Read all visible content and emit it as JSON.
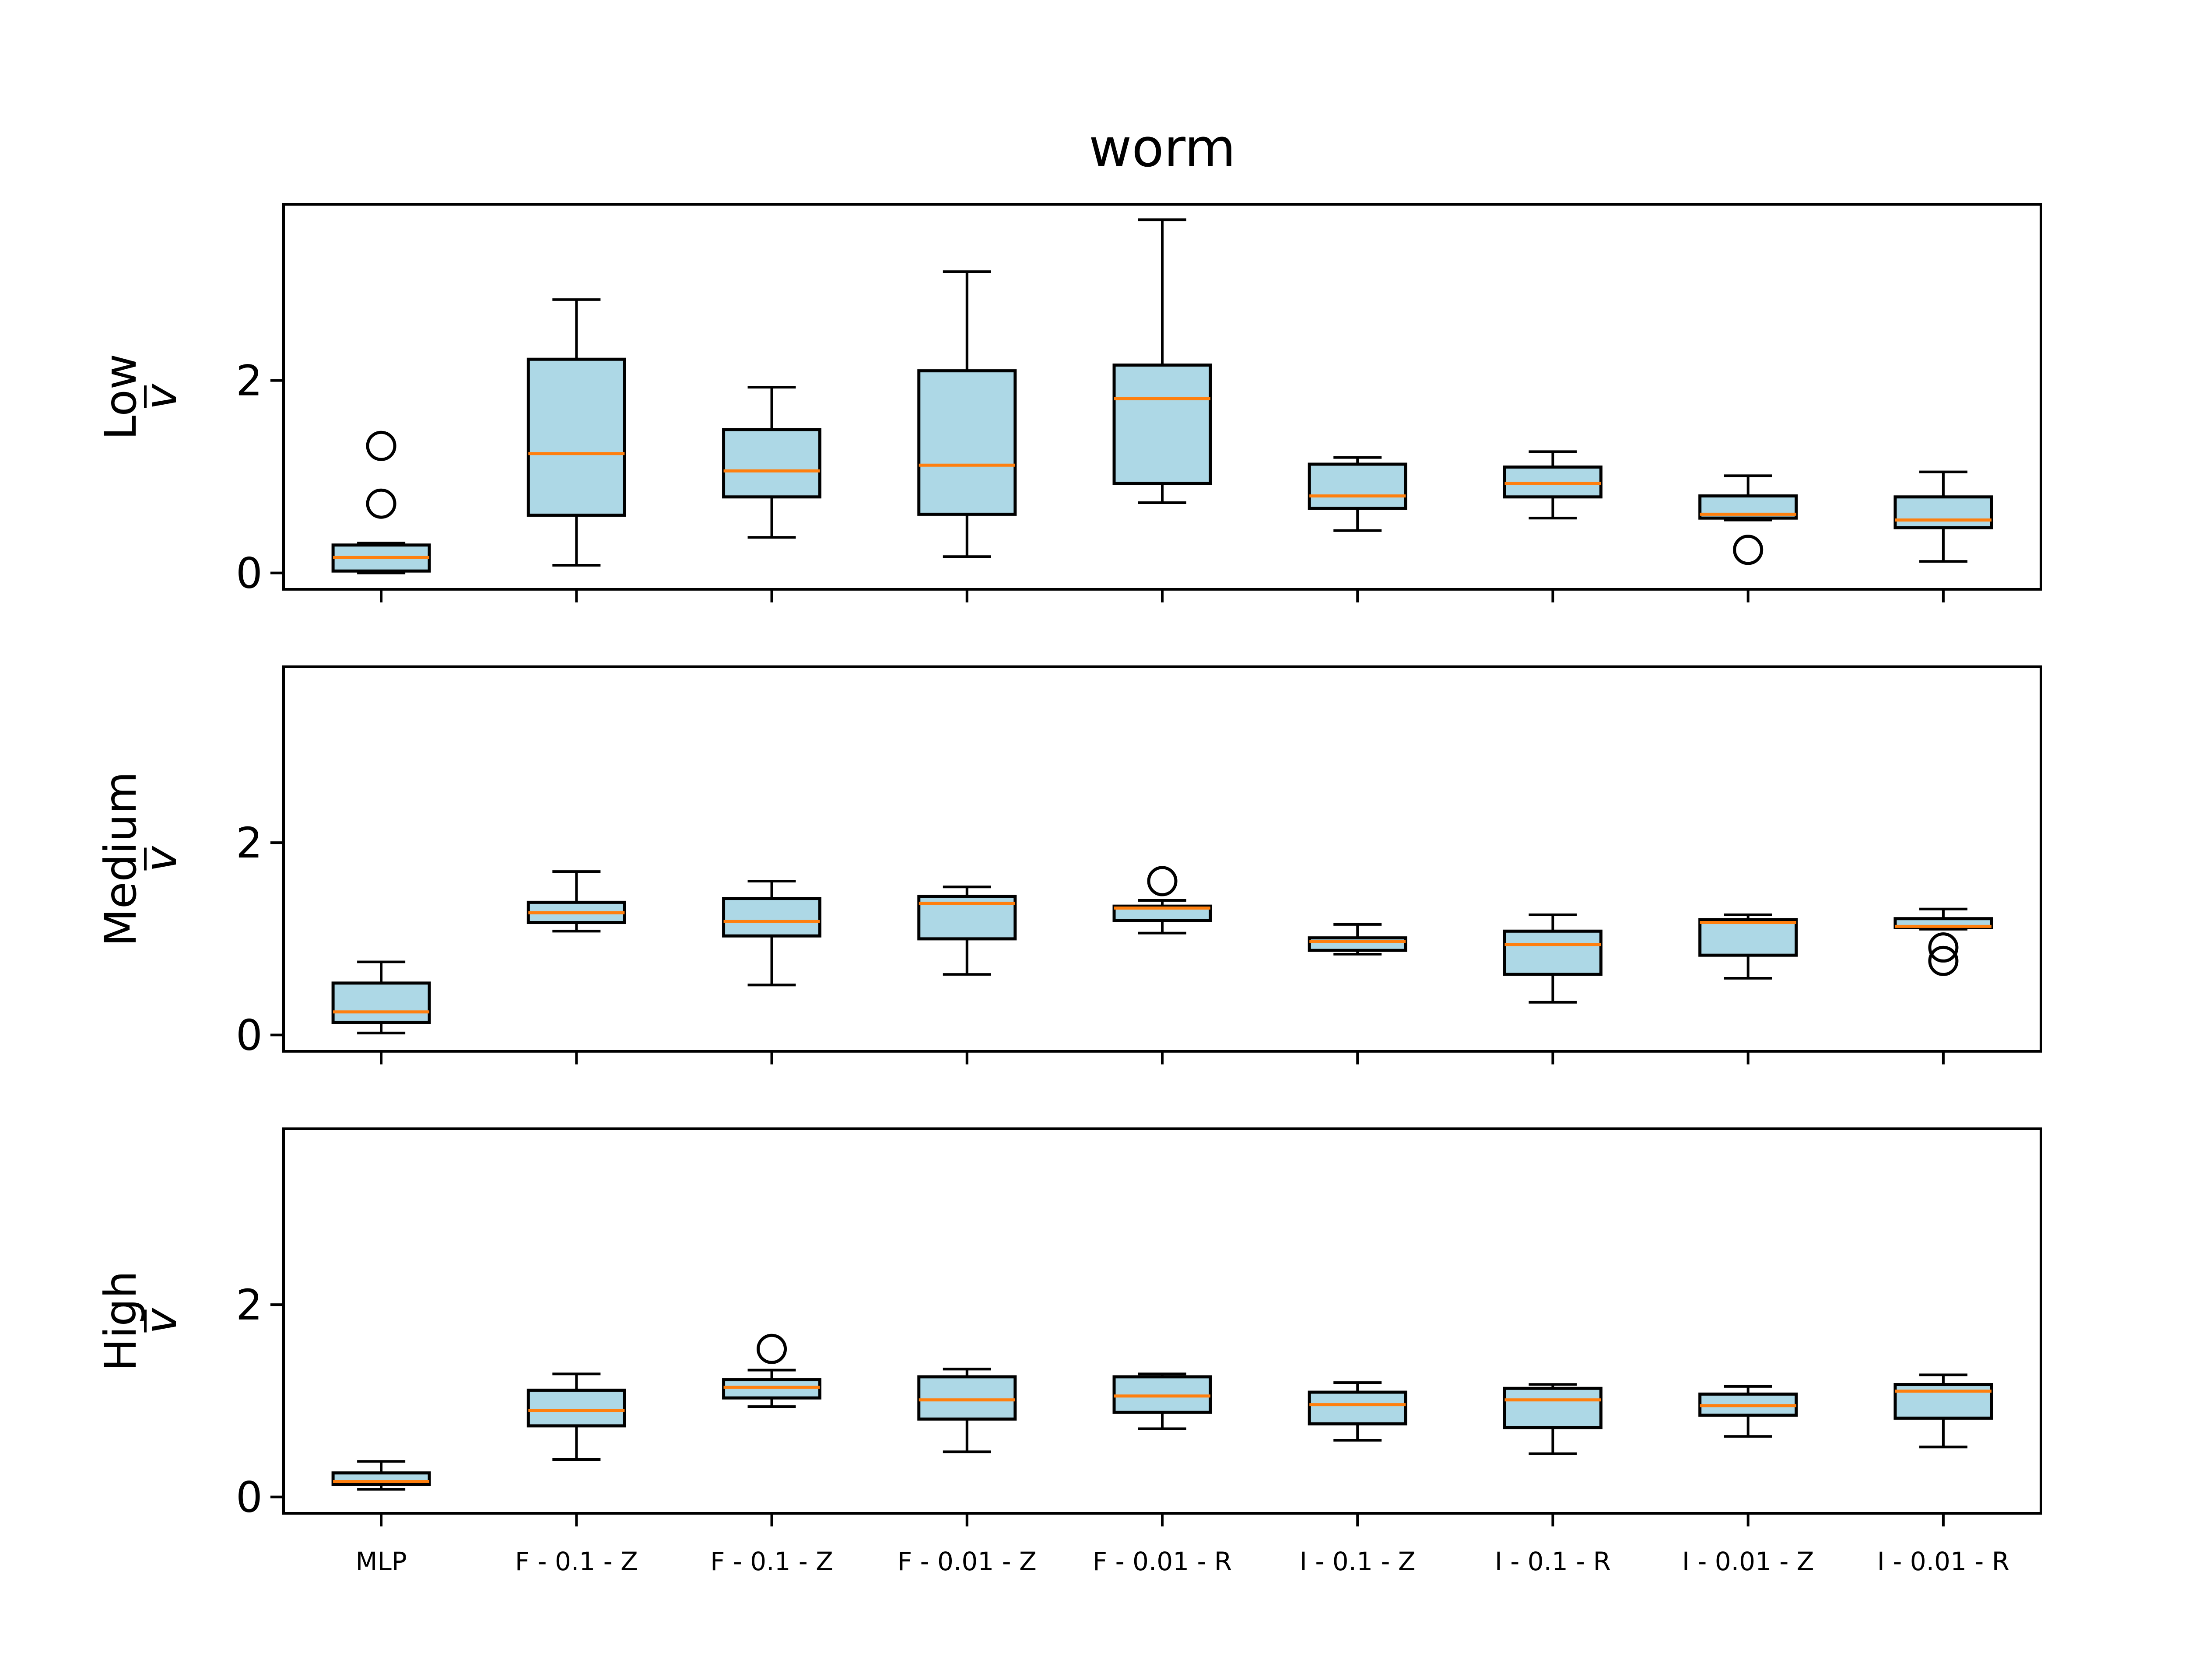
{
  "title": "worm",
  "colors": {
    "box_fill": "#add8e6",
    "box_edge": "#000000",
    "median": "#ff7f0e",
    "whisker": "#000000",
    "background": "#ffffff"
  },
  "chart_data": {
    "type": "boxplot",
    "title": "worm",
    "categories": [
      "MLP",
      "F - 0.1 - Z",
      "F - 0.1 - Z",
      "F - 0.01 - Z",
      "F - 0.01 - R",
      "I - 0.1 - Z",
      "I - 0.1 - R",
      "I - 0.01 - Z",
      "I - 0.01 - R"
    ],
    "ylim": [
      -0.17,
      3.83
    ],
    "yticks": [
      0,
      2
    ],
    "shared_x": true,
    "grid": false,
    "panels": [
      {
        "ylabel_top": "Low",
        "ylabel_bottom": "v",
        "boxes": [
          {
            "whislo": 0.0,
            "q1": 0.02,
            "med": 0.16,
            "q3": 0.29,
            "whishi": 0.31,
            "fliers": [
              0.72,
              1.32
            ]
          },
          {
            "whislo": 0.08,
            "q1": 0.6,
            "med": 1.24,
            "q3": 2.22,
            "whishi": 2.84,
            "fliers": []
          },
          {
            "whislo": 0.37,
            "q1": 0.79,
            "med": 1.06,
            "q3": 1.49,
            "whishi": 1.93,
            "fliers": []
          },
          {
            "whislo": 0.17,
            "q1": 0.61,
            "med": 1.12,
            "q3": 2.1,
            "whishi": 3.13,
            "fliers": []
          },
          {
            "whislo": 0.73,
            "q1": 0.93,
            "med": 1.81,
            "q3": 2.16,
            "whishi": 3.67,
            "fliers": []
          },
          {
            "whislo": 0.44,
            "q1": 0.67,
            "med": 0.8,
            "q3": 1.13,
            "whishi": 1.2,
            "fliers": []
          },
          {
            "whislo": 0.57,
            "q1": 0.79,
            "med": 0.93,
            "q3": 1.1,
            "whishi": 1.26,
            "fliers": []
          },
          {
            "whislo": 0.55,
            "q1": 0.57,
            "med": 0.61,
            "q3": 0.8,
            "whishi": 1.01,
            "fliers": [
              0.24
            ]
          },
          {
            "whislo": 0.12,
            "q1": 0.47,
            "med": 0.55,
            "q3": 0.79,
            "whishi": 1.05,
            "fliers": []
          }
        ]
      },
      {
        "ylabel_top": "Medium",
        "ylabel_bottom": "v",
        "boxes": [
          {
            "whislo": 0.02,
            "q1": 0.13,
            "med": 0.24,
            "q3": 0.54,
            "whishi": 0.76,
            "fliers": []
          },
          {
            "whislo": 1.08,
            "q1": 1.17,
            "med": 1.27,
            "q3": 1.38,
            "whishi": 1.7,
            "fliers": []
          },
          {
            "whislo": 0.52,
            "q1": 1.03,
            "med": 1.18,
            "q3": 1.42,
            "whishi": 1.6,
            "fliers": []
          },
          {
            "whislo": 0.63,
            "q1": 1.0,
            "med": 1.37,
            "q3": 1.44,
            "whishi": 1.54,
            "fliers": []
          },
          {
            "whislo": 1.06,
            "q1": 1.19,
            "med": 1.32,
            "q3": 1.34,
            "whishi": 1.4,
            "fliers": [
              1.6
            ]
          },
          {
            "whislo": 0.84,
            "q1": 0.88,
            "med": 0.97,
            "q3": 1.01,
            "whishi": 1.15,
            "fliers": []
          },
          {
            "whislo": 0.34,
            "q1": 0.63,
            "med": 0.94,
            "q3": 1.08,
            "whishi": 1.25,
            "fliers": []
          },
          {
            "whislo": 0.59,
            "q1": 0.83,
            "med": 1.17,
            "q3": 1.2,
            "whishi": 1.25,
            "fliers": []
          },
          {
            "whislo": 1.1,
            "q1": 1.12,
            "med": 1.13,
            "q3": 1.21,
            "whishi": 1.31,
            "fliers": [
              0.77,
              0.91
            ]
          }
        ]
      },
      {
        "ylabel_top": "High",
        "ylabel_bottom": "v",
        "boxes": [
          {
            "whislo": 0.08,
            "q1": 0.13,
            "med": 0.16,
            "q3": 0.25,
            "whishi": 0.37,
            "fliers": []
          },
          {
            "whislo": 0.39,
            "q1": 0.74,
            "med": 0.9,
            "q3": 1.11,
            "whishi": 1.28,
            "fliers": []
          },
          {
            "whislo": 0.94,
            "q1": 1.03,
            "med": 1.14,
            "q3": 1.22,
            "whishi": 1.32,
            "fliers": [
              1.54
            ]
          },
          {
            "whislo": 0.47,
            "q1": 0.81,
            "med": 1.01,
            "q3": 1.25,
            "whishi": 1.33,
            "fliers": []
          },
          {
            "whislo": 0.71,
            "q1": 0.88,
            "med": 1.05,
            "q3": 1.25,
            "whishi": 1.28,
            "fliers": []
          },
          {
            "whislo": 0.59,
            "q1": 0.76,
            "med": 0.96,
            "q3": 1.09,
            "whishi": 1.19,
            "fliers": []
          },
          {
            "whislo": 0.45,
            "q1": 0.72,
            "med": 1.01,
            "q3": 1.13,
            "whishi": 1.17,
            "fliers": []
          },
          {
            "whislo": 0.63,
            "q1": 0.85,
            "med": 0.95,
            "q3": 1.07,
            "whishi": 1.15,
            "fliers": []
          },
          {
            "whislo": 0.52,
            "q1": 0.82,
            "med": 1.1,
            "q3": 1.17,
            "whishi": 1.27,
            "fliers": []
          }
        ]
      }
    ]
  }
}
